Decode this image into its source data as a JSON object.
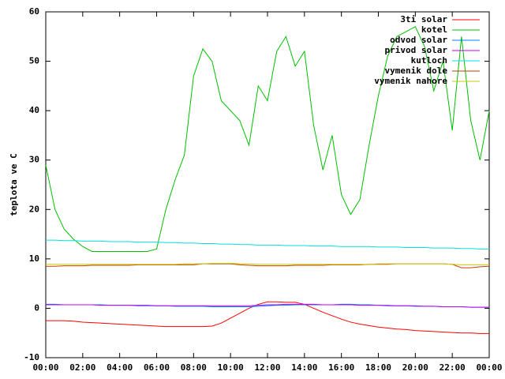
{
  "chart_data": {
    "type": "line",
    "y_label": "teplota ve C",
    "x": [
      0,
      0.5,
      1,
      1.5,
      2,
      2.5,
      3,
      3.5,
      4,
      4.5,
      5,
      5.5,
      6,
      6.5,
      7,
      7.5,
      8,
      8.5,
      9,
      9.5,
      10,
      10.5,
      11,
      11.5,
      12,
      12.5,
      13,
      13.5,
      14,
      14.5,
      15,
      15.5,
      16,
      16.5,
      17,
      17.5,
      18,
      18.5,
      19,
      19.5,
      20,
      20.5,
      21,
      21.5,
      22,
      22.5,
      23,
      23.5,
      24
    ],
    "xlim": [
      0,
      24
    ],
    "xticks": [
      {
        "value": 0,
        "label": "00:00"
      },
      {
        "value": 2,
        "label": "02:00"
      },
      {
        "value": 4,
        "label": "04:00"
      },
      {
        "value": 6,
        "label": "06:00"
      },
      {
        "value": 8,
        "label": "08:00"
      },
      {
        "value": 10,
        "label": "10:00"
      },
      {
        "value": 12,
        "label": "12:00"
      },
      {
        "value": 14,
        "label": "14:00"
      },
      {
        "value": 16,
        "label": "16:00"
      },
      {
        "value": 18,
        "label": "18:00"
      },
      {
        "value": 20,
        "label": "20:00"
      },
      {
        "value": 22,
        "label": "22:00"
      },
      {
        "value": 24,
        "label": "00:00"
      }
    ],
    "ylim": [
      -10,
      60
    ],
    "yticks": [
      -10,
      0,
      10,
      20,
      30,
      40,
      50,
      60
    ],
    "legend": "top-right",
    "series": [
      {
        "name": "3ti solar",
        "color": "#ff0000",
        "values": [
          -2.5,
          -2.5,
          -2.5,
          -2.6,
          -2.8,
          -2.9,
          -3,
          -3.1,
          -3.2,
          -3.3,
          -3.4,
          -3.5,
          -3.6,
          -3.7,
          -3.7,
          -3.7,
          -3.7,
          -3.7,
          -3.6,
          -3,
          -2,
          -1,
          0,
          0.8,
          1.3,
          1.3,
          1.2,
          1.2,
          0.8,
          0,
          -0.8,
          -1.5,
          -2.2,
          -2.8,
          -3.2,
          -3.5,
          -3.8,
          -4,
          -4.2,
          -4.3,
          -4.5,
          -4.6,
          -4.7,
          -4.8,
          -4.9,
          -5,
          -5,
          -5.1,
          -5.1
        ]
      },
      {
        "name": "kotel",
        "color": "#00c000",
        "values": [
          29,
          20,
          16,
          14,
          12.5,
          11.5,
          11.5,
          11.5,
          11.5,
          11.5,
          11.5,
          11.5,
          12,
          20,
          26,
          31,
          47,
          52.5,
          50,
          42,
          40,
          38,
          33,
          45,
          42,
          52,
          55,
          49,
          52,
          37,
          28,
          35,
          23,
          19,
          22,
          33,
          43,
          51,
          55,
          56,
          57,
          53,
          44,
          50,
          36,
          55,
          38,
          30,
          40
        ]
      },
      {
        "name": "odvod solar",
        "color": "#0080ff",
        "values": [
          0.8,
          0.8,
          0.7,
          0.7,
          0.7,
          0.7,
          0.7,
          0.6,
          0.6,
          0.6,
          0.5,
          0.5,
          0.5,
          0.5,
          0.4,
          0.4,
          0.4,
          0.4,
          0.3,
          0.3,
          0.3,
          0.3,
          0.3,
          0.4,
          0.5,
          0.6,
          0.6,
          0.7,
          0.7,
          0.7,
          0.7,
          0.7,
          0.8,
          0.8,
          0.7,
          0.7,
          0.6,
          0.6,
          0.5,
          0.5,
          0.5,
          0.4,
          0.4,
          0.3,
          0.3,
          0.3,
          0.2,
          0.2,
          0.2
        ]
      },
      {
        "name": "privod solar",
        "color": "#c000ff",
        "values": [
          0.7,
          0.7,
          0.7,
          0.7,
          0.7,
          0.7,
          0.6,
          0.6,
          0.6,
          0.6,
          0.6,
          0.6,
          0.5,
          0.5,
          0.5,
          0.5,
          0.5,
          0.5,
          0.5,
          0.5,
          0.5,
          0.5,
          0.5,
          0.6,
          0.7,
          0.7,
          0.8,
          0.8,
          0.8,
          0.8,
          0.7,
          0.7,
          0.7,
          0.7,
          0.6,
          0.6,
          0.6,
          0.5,
          0.5,
          0.5,
          0.4,
          0.4,
          0.4,
          0.3,
          0.3,
          0.3,
          0.2,
          0.2,
          0.2
        ]
      },
      {
        "name": "kutloch",
        "color": "#00e0e0",
        "values": [
          13.8,
          13.8,
          13.7,
          13.7,
          13.6,
          13.6,
          13.6,
          13.5,
          13.5,
          13.5,
          13.4,
          13.4,
          13.4,
          13.3,
          13.3,
          13.2,
          13.2,
          13.1,
          13.1,
          13.0,
          13.0,
          12.9,
          12.9,
          12.8,
          12.8,
          12.8,
          12.7,
          12.7,
          12.7,
          12.6,
          12.6,
          12.6,
          12.5,
          12.5,
          12.5,
          12.5,
          12.4,
          12.4,
          12.4,
          12.3,
          12.3,
          12.3,
          12.2,
          12.2,
          12.2,
          12.1,
          12.1,
          12.0,
          12.0
        ]
      },
      {
        "name": "vymenik dole",
        "color": "#c04000",
        "values": [
          8.5,
          8.5,
          8.6,
          8.6,
          8.6,
          8.7,
          8.7,
          8.7,
          8.7,
          8.7,
          8.8,
          8.8,
          8.8,
          8.8,
          8.8,
          8.8,
          8.8,
          9,
          9,
          9,
          9,
          8.8,
          8.7,
          8.6,
          8.6,
          8.6,
          8.6,
          8.7,
          8.7,
          8.7,
          8.7,
          8.8,
          8.8,
          8.8,
          8.8,
          8.9,
          8.9,
          8.9,
          9,
          9,
          9,
          9,
          9,
          9,
          8.9,
          8.2,
          8.2,
          8.4,
          8.5
        ]
      },
      {
        "name": "vymenik nahore",
        "color": "#c8c800",
        "values": [
          8.9,
          8.9,
          8.9,
          8.9,
          8.9,
          8.9,
          8.9,
          8.9,
          8.9,
          8.9,
          8.9,
          8.9,
          8.9,
          8.9,
          8.9,
          9,
          9,
          9,
          9.1,
          9.1,
          9.1,
          9,
          9,
          8.9,
          8.9,
          8.9,
          8.9,
          8.9,
          8.9,
          8.9,
          8.9,
          8.9,
          8.9,
          8.9,
          8.9,
          8.9,
          9,
          9,
          9,
          9,
          9,
          9,
          9,
          9,
          8.9,
          8.8,
          8.8,
          8.8,
          8.8
        ]
      }
    ]
  }
}
